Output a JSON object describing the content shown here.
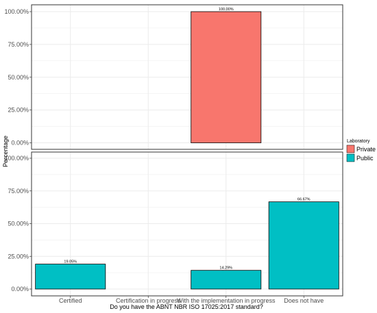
{
  "chart_data": {
    "type": "bar",
    "xlabel": "Do you have the ABNT NBR ISO 17025:2017 standard?",
    "ylabel": "Percentage",
    "categories": [
      "Certified",
      "Certification in progress",
      "With the implementation in progress",
      "Does not have"
    ],
    "ylim": [
      0,
      100
    ],
    "yticks": [
      "0.00%",
      "25.00%",
      "50.00%",
      "75.00%",
      "100.00%"
    ],
    "grid": true,
    "legend": {
      "title": "Laboratory",
      "position": "right",
      "entries": [
        {
          "name": "Private",
          "color": "#F8766D"
        },
        {
          "name": "Public",
          "color": "#00BFC4"
        }
      ]
    },
    "panels": [
      {
        "series": "Private",
        "color": "#F8766D",
        "values": [
          null,
          null,
          100.0,
          null
        ],
        "labels": [
          null,
          null,
          "100.00%",
          null
        ]
      },
      {
        "series": "Public",
        "color": "#00BFC4",
        "values": [
          19.05,
          null,
          14.29,
          66.67
        ],
        "labels": [
          "19.05%",
          null,
          "14.29%",
          "66.67%"
        ]
      }
    ]
  }
}
